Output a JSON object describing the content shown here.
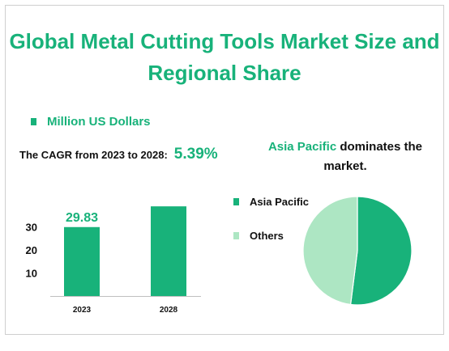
{
  "title": "Global Metal Cutting Tools Market Size and Regional Share",
  "unit_legend": "Million US Dollars",
  "cagr": {
    "label": "The CAGR from 2023 to 2028:",
    "value": "5.39%"
  },
  "pie_title": {
    "highlight": "Asia Pacific",
    "rest": " dominates the market."
  },
  "colors": {
    "accent": "#18b27a",
    "light": "#ade6c3"
  },
  "chart_data": [
    {
      "type": "bar",
      "categories": [
        "2023",
        "2028"
      ],
      "values": [
        29.83,
        38.8
      ],
      "data_labels": [
        "29.83",
        ""
      ],
      "yticks": [
        10,
        20,
        30
      ],
      "ylim": [
        0,
        42
      ],
      "xlabel": "",
      "ylabel": ""
    },
    {
      "type": "pie",
      "labels": [
        "Asia Pacific",
        "Others"
      ],
      "values": [
        52,
        48
      ],
      "colors": [
        "#18b27a",
        "#ade6c3"
      ],
      "legend": "left"
    }
  ]
}
